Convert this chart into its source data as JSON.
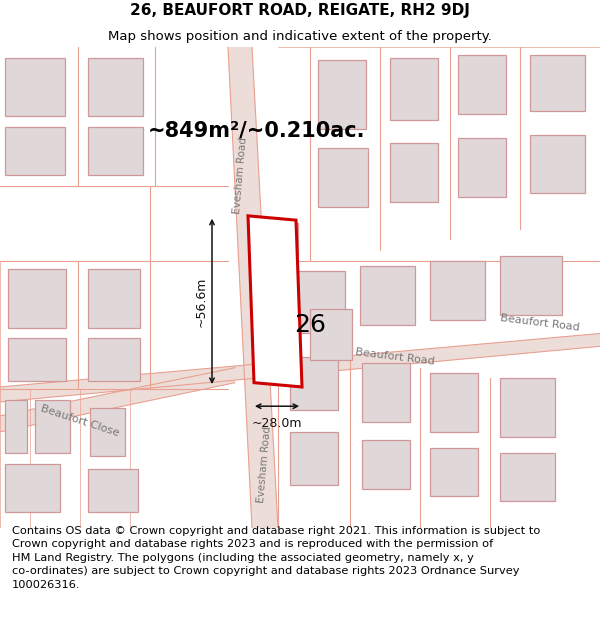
{
  "title": "26, BEAUFORT ROAD, REIGATE, RH2 9DJ",
  "subtitle": "Map shows position and indicative extent of the property.",
  "footer": "Contains OS data © Crown copyright and database right 2021. This information is subject to\nCrown copyright and database rights 2023 and is reproduced with the permission of\nHM Land Registry. The polygons (including the associated geometry, namely x, y\nco-ordinates) are subject to Crown copyright and database rights 2023 Ordnance Survey\n100026316.",
  "area_label": "~849m²/~0.210ac.",
  "width_label": "~28.0m",
  "height_label": "~56.6m",
  "number_label": "26",
  "map_bg": "#f7f3f3",
  "road_fill": "#edddd8",
  "road_line": "#e8a090",
  "building_fill": "#e0d8d8",
  "building_line": "#d09898",
  "highlight_color": "#cc0000",
  "highlight_fill": "#ffffff",
  "dim_color": "#111111",
  "road_label_color": "#777777",
  "title_fontsize": 11,
  "subtitle_fontsize": 9.5,
  "footer_fontsize": 8.2,
  "area_fontsize": 15,
  "number_fontsize": 18,
  "dim_fontsize": 9
}
